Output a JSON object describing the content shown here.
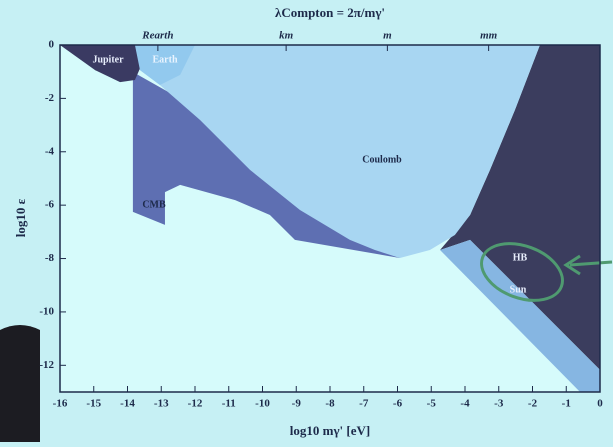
{
  "chart_data": {
    "type": "region",
    "title": "λCompton = 2π/mγ'",
    "x_label": "log10 mγ' [eV]",
    "y_label": "log10 ε",
    "xlim": [
      -16,
      0
    ],
    "ylim": [
      -13,
      0
    ],
    "xticks": [
      -16,
      -15,
      -14,
      -13,
      -12,
      -11,
      -10,
      -9,
      -8,
      -7,
      -6,
      -5,
      -4,
      -3,
      -2,
      -1,
      0
    ],
    "yticks": [
      0,
      -2,
      -4,
      -6,
      -8,
      -10,
      -12
    ],
    "x2ticks": [
      {
        "value": -13.1,
        "label": "Rearth"
      },
      {
        "value": -9.3,
        "label": "km"
      },
      {
        "value": -6.3,
        "label": "m"
      },
      {
        "value": -3.3,
        "label": "mm"
      }
    ],
    "series": [
      {
        "name": "HB",
        "color": "#3b3d5e",
        "x": [
          -1.78,
          0,
          0,
          -3.85,
          -4.74,
          -3.85,
          -3.26,
          -2.52
        ],
        "y": [
          0,
          0,
          -12.17,
          -7.3,
          -7.68,
          -6.37,
          -4.68,
          -2.43
        ]
      },
      {
        "name": "Sun",
        "color": "#86b6e2",
        "x": [
          -4.74,
          -3.85,
          0,
          0,
          -0.59
        ],
        "y": [
          -7.68,
          -7.3,
          -12.17,
          -13,
          -13
        ]
      },
      {
        "name": "CMB",
        "color": "#5e6fb2",
        "x": [
          -13.84,
          -11.85,
          -5.93,
          -9.04,
          -9.78,
          -10.81,
          -12.44,
          -12.89,
          -12.89,
          -13.84
        ],
        "y": [
          -1.01,
          -2.43,
          -7.98,
          -7.3,
          -6.37,
          -5.81,
          -5.24,
          -5.51,
          -6.74,
          -6.25
        ]
      },
      {
        "name": "Coulomb",
        "color": "#a8d6f2",
        "x": [
          -12.3,
          -1.78,
          -2.52,
          -3.26,
          -3.85,
          -4.3,
          -5.04,
          -5.93,
          -6.67,
          -7.41,
          -8.89,
          -10.37,
          -11.85,
          -13.04,
          -13.63,
          -14.07
        ],
        "y": [
          0,
          0,
          -2.43,
          -4.68,
          -6.37,
          -7.12,
          -7.68,
          -7.98,
          -7.68,
          -7.3,
          -6.18,
          -4.68,
          -2.81,
          -1.5,
          -0.94,
          -0.37
        ]
      },
      {
        "name": "Jupiter",
        "color": "#3a3a62",
        "x": [
          -16,
          -13.33,
          -13.78,
          -14.22,
          -14.96
        ],
        "y": [
          0,
          0,
          -1.31,
          -1.39,
          -0.94
        ]
      },
      {
        "name": "Earth",
        "color": "#92c9ee",
        "x": [
          -13.78,
          -12.0,
          -12.44,
          -13.04,
          -13.63
        ],
        "y": [
          0,
          0,
          -1.12,
          -1.5,
          -0.94
        ]
      }
    ]
  }
}
